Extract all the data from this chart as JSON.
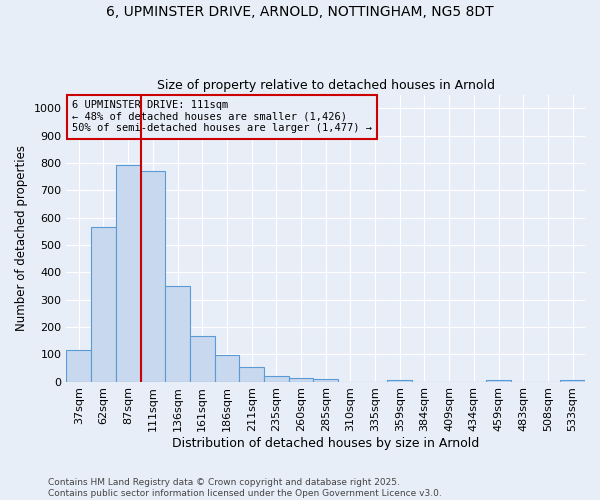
{
  "title": "6, UPMINSTER DRIVE, ARNOLD, NOTTINGHAM, NG5 8DT",
  "subtitle": "Size of property relative to detached houses in Arnold",
  "xlabel": "Distribution of detached houses by size in Arnold",
  "ylabel": "Number of detached properties",
  "categories": [
    "37sqm",
    "62sqm",
    "87sqm",
    "111sqm",
    "136sqm",
    "161sqm",
    "186sqm",
    "211sqm",
    "235sqm",
    "260sqm",
    "285sqm",
    "310sqm",
    "335sqm",
    "359sqm",
    "384sqm",
    "409sqm",
    "434sqm",
    "459sqm",
    "483sqm",
    "508sqm",
    "533sqm"
  ],
  "values": [
    115,
    565,
    793,
    770,
    350,
    165,
    97,
    53,
    20,
    14,
    10,
    0,
    0,
    5,
    0,
    0,
    0,
    7,
    0,
    0,
    4
  ],
  "bar_color": "#c8d8ee",
  "bar_edge_color": "#5b9bd5",
  "vline_x": 2.5,
  "vline_color": "#cc0000",
  "annotation_box_text": "6 UPMINSTER DRIVE: 111sqm\n← 48% of detached houses are smaller (1,426)\n50% of semi-detached houses are larger (1,477) →",
  "annotation_box_edge_color": "#cc0000",
  "ylim": [
    0,
    1050
  ],
  "yticks": [
    0,
    100,
    200,
    300,
    400,
    500,
    600,
    700,
    800,
    900,
    1000
  ],
  "background_color": "#e8eef8",
  "grid_color": "#ffffff",
  "footer_line1": "Contains HM Land Registry data © Crown copyright and database right 2025.",
  "footer_line2": "Contains public sector information licensed under the Open Government Licence v3.0."
}
